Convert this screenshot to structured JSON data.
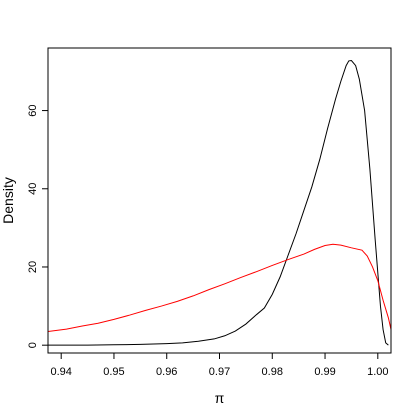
{
  "chart_data": {
    "type": "line",
    "title": "",
    "xlabel": "π",
    "ylabel": "Density",
    "xlim": [
      0.9375,
      1.0025
    ],
    "ylim": [
      -2,
      76
    ],
    "x_ticks": [
      0.94,
      0.95,
      0.96,
      0.97,
      0.98,
      0.99,
      1.0
    ],
    "x_tick_labels": [
      "0.94",
      "0.95",
      "0.96",
      "0.97",
      "0.98",
      "0.99",
      "1.00"
    ],
    "y_ticks": [
      0,
      20,
      40,
      60
    ],
    "y_tick_labels": [
      "0",
      "20",
      "40",
      "60"
    ],
    "grid": false,
    "legend": "none",
    "series": [
      {
        "color": "#000000",
        "points": [
          [
            0.9375,
            0.0
          ],
          [
            0.945,
            0.0
          ],
          [
            0.95,
            0.1
          ],
          [
            0.955,
            0.2
          ],
          [
            0.96,
            0.4
          ],
          [
            0.963,
            0.6
          ],
          [
            0.966,
            1.0
          ],
          [
            0.969,
            1.6
          ],
          [
            0.971,
            2.4
          ],
          [
            0.973,
            3.6
          ],
          [
            0.975,
            5.4
          ],
          [
            0.977,
            7.8
          ],
          [
            0.9785,
            9.5
          ],
          [
            0.98,
            13.0
          ],
          [
            0.9815,
            17.5
          ],
          [
            0.983,
            23.0
          ],
          [
            0.9845,
            28.5
          ],
          [
            0.986,
            34.5
          ],
          [
            0.9875,
            40.5
          ],
          [
            0.989,
            47.5
          ],
          [
            0.9905,
            55.5
          ],
          [
            0.992,
            63.0
          ],
          [
            0.993,
            67.5
          ],
          [
            0.994,
            71.5
          ],
          [
            0.9945,
            72.7
          ],
          [
            0.995,
            72.8
          ],
          [
            0.9958,
            71.5
          ],
          [
            0.9965,
            68.0
          ],
          [
            0.9975,
            60.0
          ],
          [
            0.9985,
            45.0
          ],
          [
            0.9995,
            27.0
          ],
          [
            1.0005,
            10.0
          ],
          [
            1.001,
            4.0
          ],
          [
            1.0015,
            0.6
          ],
          [
            1.002,
            0.0
          ]
        ]
      },
      {
        "color": "#ff0000",
        "points": [
          [
            0.9375,
            3.5
          ],
          [
            0.941,
            4.1
          ],
          [
            0.944,
            4.9
          ],
          [
            0.947,
            5.6
          ],
          [
            0.95,
            6.6
          ],
          [
            0.953,
            7.7
          ],
          [
            0.956,
            8.9
          ],
          [
            0.959,
            10.0
          ],
          [
            0.962,
            11.2
          ],
          [
            0.965,
            12.6
          ],
          [
            0.968,
            14.2
          ],
          [
            0.971,
            15.7
          ],
          [
            0.974,
            17.3
          ],
          [
            0.977,
            18.8
          ],
          [
            0.98,
            20.4
          ],
          [
            0.983,
            21.9
          ],
          [
            0.986,
            23.3
          ],
          [
            0.988,
            24.5
          ],
          [
            0.99,
            25.5
          ],
          [
            0.9915,
            25.8
          ],
          [
            0.993,
            25.6
          ],
          [
            0.995,
            24.9
          ],
          [
            0.997,
            24.3
          ],
          [
            0.998,
            22.8
          ],
          [
            0.999,
            20.0
          ],
          [
            1.0,
            16.5
          ],
          [
            1.001,
            11.5
          ],
          [
            1.002,
            7.0
          ],
          [
            1.0025,
            4.0
          ]
        ]
      }
    ]
  }
}
